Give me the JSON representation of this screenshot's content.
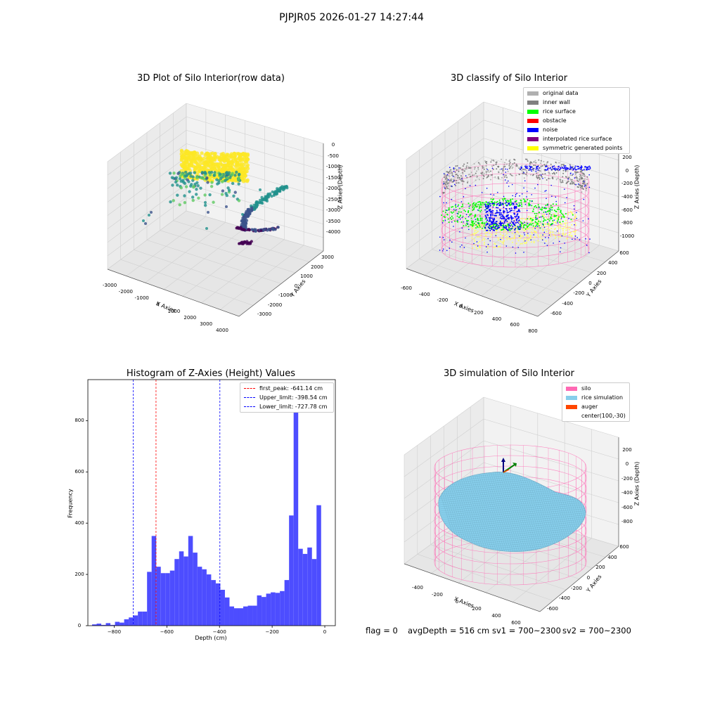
{
  "suptitle": "PJPJR05 2026-01-27 14:27:44",
  "footer": {
    "flag": "flag = 0",
    "avg_depth": "avgDepth = 516 cm",
    "sv1": "sv1 = 700~2300",
    "sv2": "sv2 = 700~2300"
  },
  "panel1": {
    "title": "3D Plot of Silo Interior(row data)",
    "xlabel": "X Axies",
    "ylabel": "Y Axies",
    "zlabel": "Z Axies (Depth)",
    "xticks": [
      "-3000",
      "-2000",
      "-1000",
      "0",
      "1000",
      "2000",
      "3000",
      "4000"
    ],
    "yticks": [
      "-3000",
      "-2000",
      "-1000",
      "0",
      "1000",
      "2000",
      "3000"
    ],
    "zticks": [
      "0",
      "-500",
      "-1000",
      "-1500",
      "-2000",
      "-2500",
      "-3000",
      "-3500",
      "-4000"
    ],
    "colormap": [
      "#440154",
      "#3b528b",
      "#21918c",
      "#5ec962",
      "#fde725"
    ]
  },
  "panel2": {
    "title": "3D classify of Silo Interior",
    "xlabel": "X Axies",
    "ylabel": "Y Axies",
    "zlabel": "Z Axies (Depth)",
    "xticks": [
      "-600",
      "-400",
      "-200",
      "0",
      "200",
      "400",
      "600",
      "800"
    ],
    "yticks": [
      "-600",
      "-400",
      "-200",
      "0",
      "200",
      "400",
      "600"
    ],
    "zticks": [
      "200",
      "0",
      "-200",
      "-400",
      "-600",
      "-800",
      "-1000"
    ],
    "legend": [
      {
        "label": "original data",
        "color": "#b0b0b0"
      },
      {
        "label": "inner wall",
        "color": "#808080"
      },
      {
        "label": "rice surface",
        "color": "#00ff00"
      },
      {
        "label": "obstacle",
        "color": "#ff0000"
      },
      {
        "label": "noise",
        "color": "#0000ff"
      },
      {
        "label": "interpolated rice surface",
        "color": "#800080"
      },
      {
        "label": "symmetric generated points",
        "color": "#ffff00"
      }
    ]
  },
  "panel3": {
    "title": "Histogram of Z-Axies (Height) Values"
  },
  "panel4": {
    "title": "3D simulation of Silo Interior",
    "xlabel": "X Axies",
    "ylabel": "Y Axies",
    "zlabel": "Z Axies (Depth)",
    "xticks": [
      "-400",
      "-200",
      "0",
      "200",
      "400",
      "600"
    ],
    "yticks": [
      "-600",
      "-400",
      "-200",
      "0",
      "200",
      "400",
      "600"
    ],
    "zticks": [
      "200",
      "0",
      "-200",
      "-400",
      "-600",
      "-800"
    ],
    "legend": [
      {
        "label": "silo",
        "color": "#ff69b4"
      },
      {
        "label": "rice simulation",
        "color": "#87ceeb"
      },
      {
        "label": "auger",
        "color": "#ff4500"
      },
      {
        "label": "center(100,-30)",
        "color": ""
      }
    ]
  },
  "chart_data": [
    {
      "type": "bar",
      "title": "Histogram of Z-Axies (Height) Values",
      "xlabel": "Depth (cm)",
      "ylabel": "Frequency",
      "bar_color": "#4d4dff",
      "xlim": [
        -900,
        40
      ],
      "ylim": [
        0,
        960
      ],
      "xticks": [
        -800,
        -600,
        -400,
        -200,
        0
      ],
      "yticks": [
        0,
        200,
        400,
        600,
        800
      ],
      "bin_start": -884,
      "bin_width": 17.4,
      "values": [
        5,
        8,
        3,
        10,
        3,
        15,
        12,
        25,
        32,
        40,
        55,
        55,
        210,
        350,
        230,
        205,
        205,
        215,
        260,
        290,
        270,
        350,
        285,
        230,
        220,
        200,
        178,
        165,
        140,
        110,
        75,
        68,
        68,
        75,
        78,
        78,
        118,
        112,
        125,
        130,
        128,
        135,
        178,
        430,
        905,
        300,
        280,
        305,
        260,
        470
      ],
      "vlines": [
        {
          "x": -641.14,
          "color": "#ff0000",
          "label": "first_peak: -641.14 cm"
        },
        {
          "x": -398.54,
          "color": "#0000ff",
          "label": "Upper_limit: -398.54 cm"
        },
        {
          "x": -727.78,
          "color": "#0000ff",
          "label": "Lower_limit: -727.78 cm"
        }
      ],
      "legend": "top-right",
      "grid": false
    }
  ]
}
